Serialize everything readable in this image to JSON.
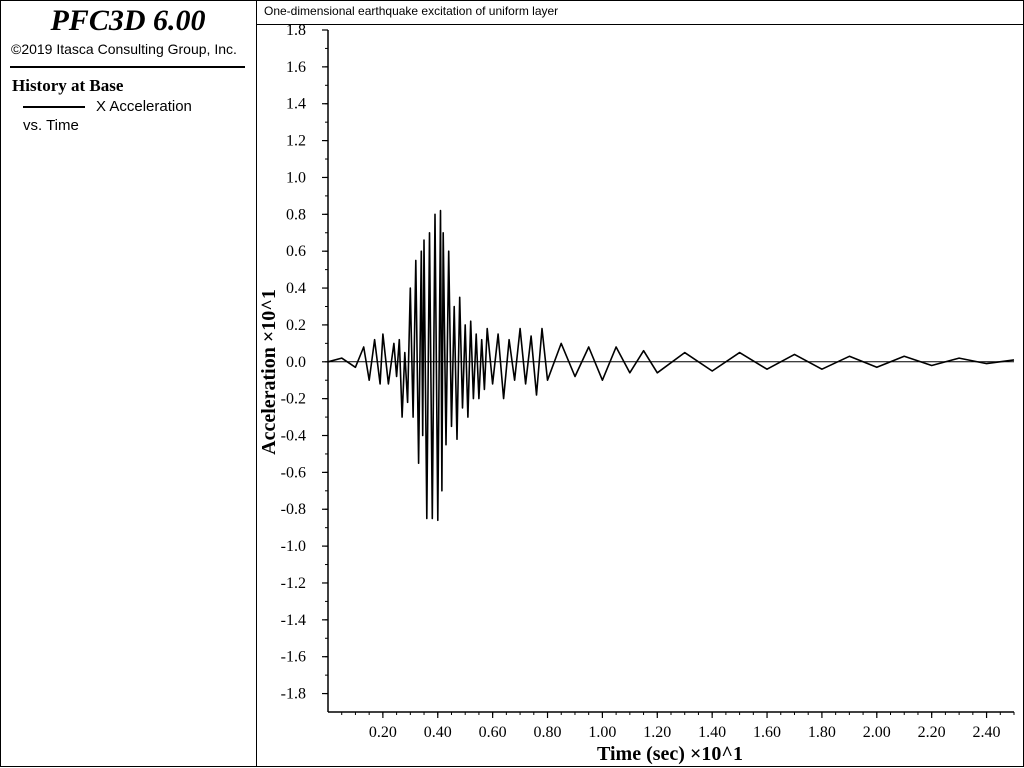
{
  "app": {
    "title": "PFC3D 6.00",
    "copyright": "©2019 Itasca Consulting Group, Inc."
  },
  "legend": {
    "title": "History at Base",
    "series_label": "X Acceleration",
    "vs_label": "vs. Time"
  },
  "chart_data": {
    "type": "line",
    "title": "One-dimensional earthquake excitation of uniform layer",
    "xlabel": "Time (sec) ×10^1",
    "ylabel": "Acceleration ×10^1",
    "xlim": [
      0.0,
      2.5
    ],
    "ylim": [
      -1.9,
      1.8
    ],
    "xticks": [
      "0.20",
      "0.40",
      "0.60",
      "0.80",
      "1.00",
      "1.20",
      "1.40",
      "1.60",
      "1.80",
      "2.00",
      "2.20",
      "2.40"
    ],
    "yticks": [
      "1.8",
      "1.6",
      "1.4",
      "1.2",
      "1.0",
      "0.8",
      "0.6",
      "0.4",
      "0.2",
      "0.0",
      "-0.2",
      "-0.4",
      "-0.6",
      "-0.8",
      "-1.0",
      "-1.2",
      "-1.4",
      "-1.6",
      "-1.8"
    ],
    "grid": false,
    "series": [
      {
        "name": "X Acceleration",
        "color": "#000000",
        "x": [
          0.0,
          0.05,
          0.1,
          0.13,
          0.15,
          0.17,
          0.19,
          0.2,
          0.22,
          0.24,
          0.25,
          0.26,
          0.27,
          0.28,
          0.29,
          0.3,
          0.31,
          0.32,
          0.33,
          0.34,
          0.345,
          0.35,
          0.36,
          0.37,
          0.38,
          0.39,
          0.4,
          0.41,
          0.415,
          0.42,
          0.43,
          0.44,
          0.45,
          0.46,
          0.47,
          0.48,
          0.49,
          0.5,
          0.51,
          0.52,
          0.53,
          0.54,
          0.55,
          0.56,
          0.57,
          0.58,
          0.6,
          0.62,
          0.64,
          0.66,
          0.68,
          0.7,
          0.72,
          0.74,
          0.76,
          0.78,
          0.8,
          0.85,
          0.9,
          0.95,
          1.0,
          1.05,
          1.1,
          1.15,
          1.2,
          1.3,
          1.4,
          1.5,
          1.6,
          1.7,
          1.8,
          1.9,
          2.0,
          2.1,
          2.2,
          2.3,
          2.4,
          2.5
        ],
        "y": [
          0.0,
          0.02,
          -0.03,
          0.08,
          -0.1,
          0.12,
          -0.12,
          0.15,
          -0.12,
          0.1,
          -0.08,
          0.12,
          -0.3,
          0.05,
          -0.22,
          0.4,
          -0.3,
          0.55,
          -0.55,
          0.6,
          -0.4,
          0.66,
          -0.85,
          0.7,
          -0.85,
          0.8,
          -0.86,
          0.82,
          -0.7,
          0.7,
          -0.45,
          0.6,
          -0.35,
          0.3,
          -0.42,
          0.35,
          -0.25,
          0.2,
          -0.3,
          0.22,
          -0.2,
          0.15,
          -0.2,
          0.12,
          -0.15,
          0.18,
          -0.12,
          0.15,
          -0.2,
          0.12,
          -0.1,
          0.18,
          -0.12,
          0.14,
          -0.18,
          0.18,
          -0.1,
          0.1,
          -0.08,
          0.08,
          -0.1,
          0.08,
          -0.06,
          0.06,
          -0.06,
          0.05,
          -0.05,
          0.05,
          -0.04,
          0.04,
          -0.04,
          0.03,
          -0.03,
          0.03,
          -0.02,
          0.02,
          -0.01,
          0.01
        ]
      }
    ]
  }
}
